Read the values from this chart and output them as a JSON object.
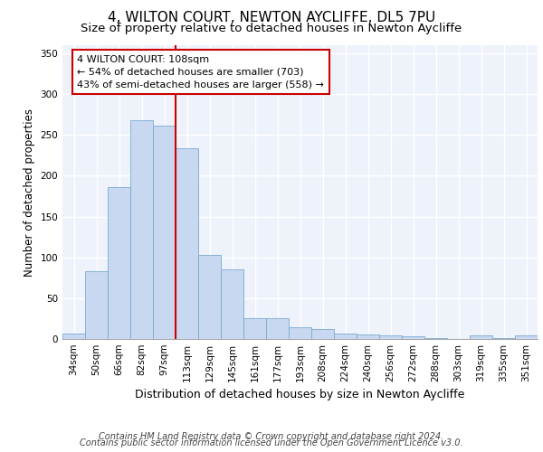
{
  "title1": "4, WILTON COURT, NEWTON AYCLIFFE, DL5 7PU",
  "title2": "Size of property relative to detached houses in Newton Aycliffe",
  "xlabel": "Distribution of detached houses by size in Newton Aycliffe",
  "ylabel": "Number of detached properties",
  "categories": [
    "34sqm",
    "50sqm",
    "66sqm",
    "82sqm",
    "97sqm",
    "113sqm",
    "129sqm",
    "145sqm",
    "161sqm",
    "177sqm",
    "193sqm",
    "208sqm",
    "224sqm",
    "240sqm",
    "256sqm",
    "272sqm",
    "288sqm",
    "303sqm",
    "319sqm",
    "335sqm",
    "351sqm"
  ],
  "values": [
    7,
    83,
    186,
    268,
    261,
    234,
    103,
    85,
    26,
    26,
    14,
    12,
    7,
    6,
    4,
    3,
    1,
    0,
    4,
    1,
    4
  ],
  "bar_color": "#c8d8f0",
  "bar_edge_color": "#7aaad0",
  "vline_x_idx": 4.5,
  "vline_color": "#cc0000",
  "annotation_line1": "4 WILTON COURT: 108sqm",
  "annotation_line2": "← 54% of detached houses are smaller (703)",
  "annotation_line3": "43% of semi-detached houses are larger (558) →",
  "annotation_box_color": "white",
  "annotation_box_edge": "#cc0000",
  "ylim": [
    0,
    360
  ],
  "yticks": [
    0,
    50,
    100,
    150,
    200,
    250,
    300,
    350
  ],
  "footer1": "Contains HM Land Registry data © Crown copyright and database right 2024.",
  "footer2": "Contains public sector information licensed under the Open Government Licence v3.0.",
  "bg_color": "#eef2fb",
  "grid_color": "white",
  "title1_fontsize": 11,
  "title2_fontsize": 9.5,
  "ylabel_fontsize": 8.5,
  "xlabel_fontsize": 9,
  "tick_fontsize": 7.5,
  "footer_fontsize": 7,
  "annotation_fontsize": 8
}
